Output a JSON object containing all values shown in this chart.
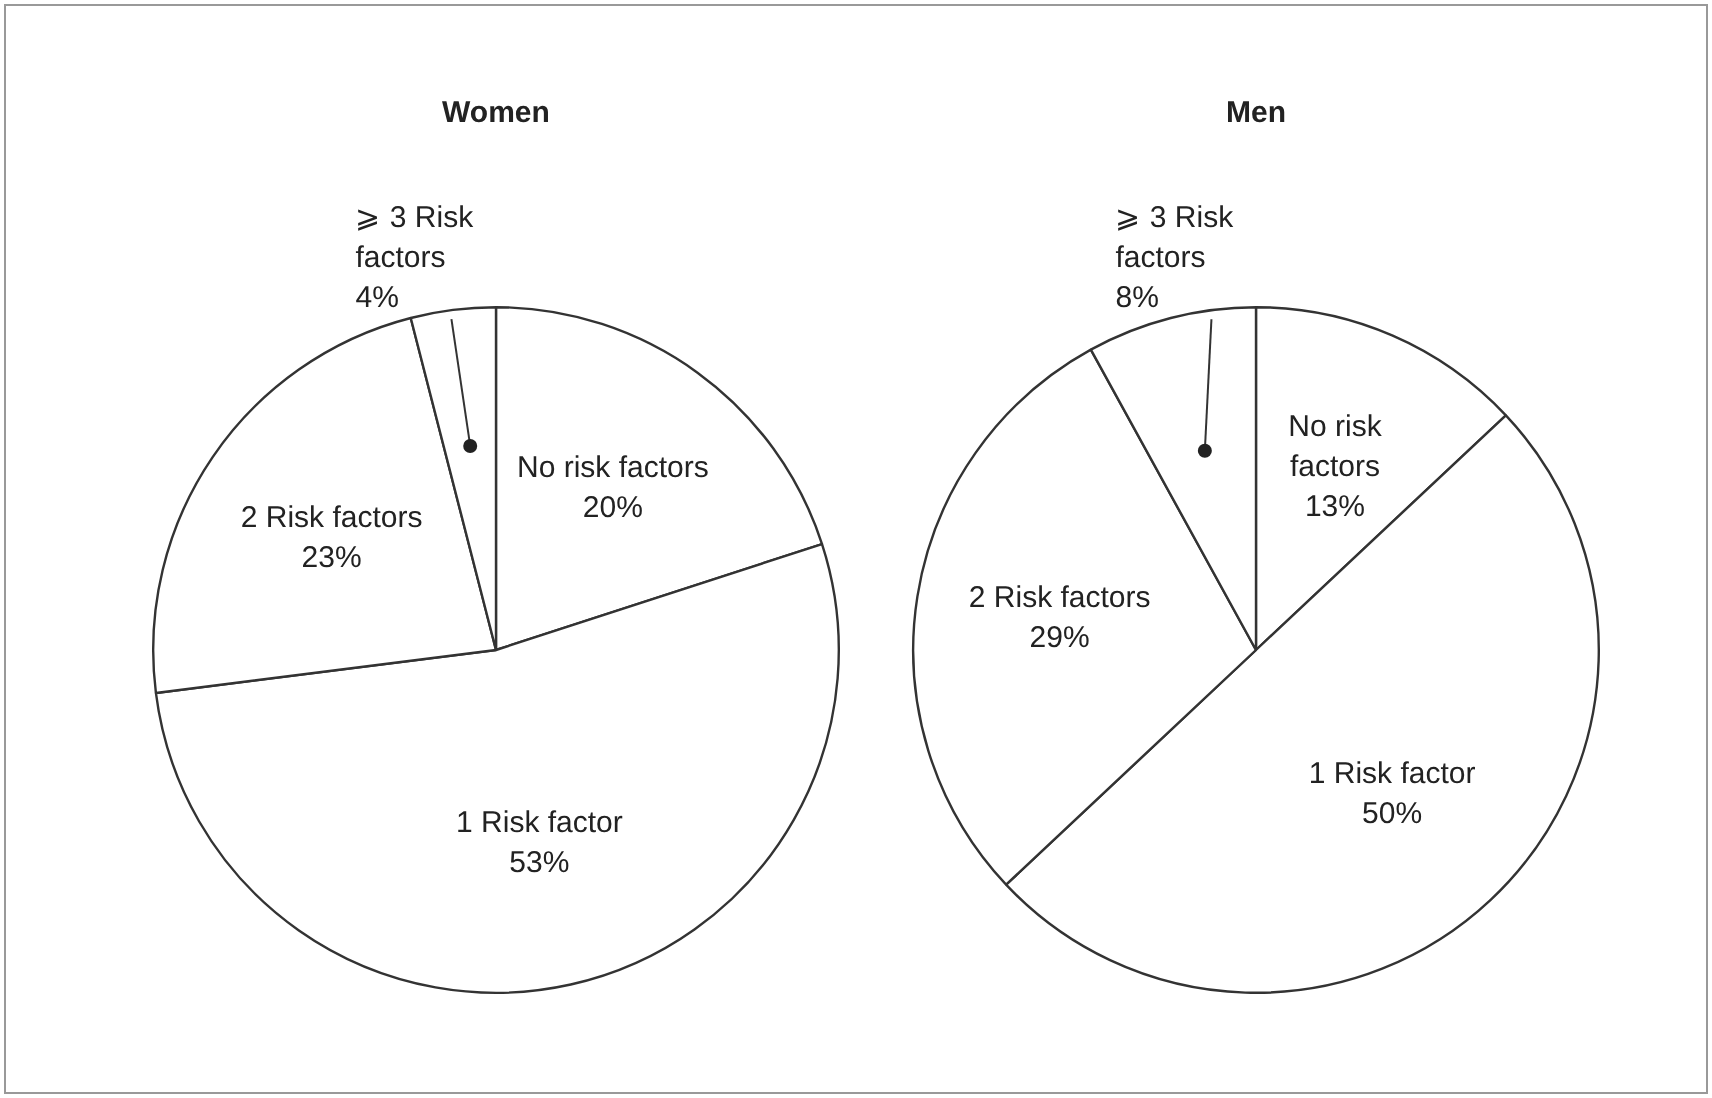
{
  "chart_data": [
    {
      "type": "pie",
      "title": "Women",
      "categories": [
        "No risk factors",
        "1 Risk factor",
        "2 Risk factors",
        "⩾ 3 Risk factors"
      ],
      "values": [
        20,
        53,
        23,
        4
      ],
      "value_labels": [
        "20%",
        "53%",
        "23%",
        "4%"
      ],
      "colors": [
        "#ffffff",
        "#ffffff",
        "#ffffff",
        "#ffffff"
      ],
      "legend": false
    },
    {
      "type": "pie",
      "title": "Men",
      "categories": [
        "No risk factors",
        "1 Risk factor",
        "2 Risk factors",
        "⩾ 3 Risk factors"
      ],
      "values": [
        13,
        50,
        29,
        8
      ],
      "value_labels": [
        "13%",
        "50%",
        "29%",
        "8%"
      ],
      "colors": [
        "#ffffff",
        "#ffffff",
        "#ffffff",
        "#ffffff"
      ],
      "legend": false
    }
  ]
}
